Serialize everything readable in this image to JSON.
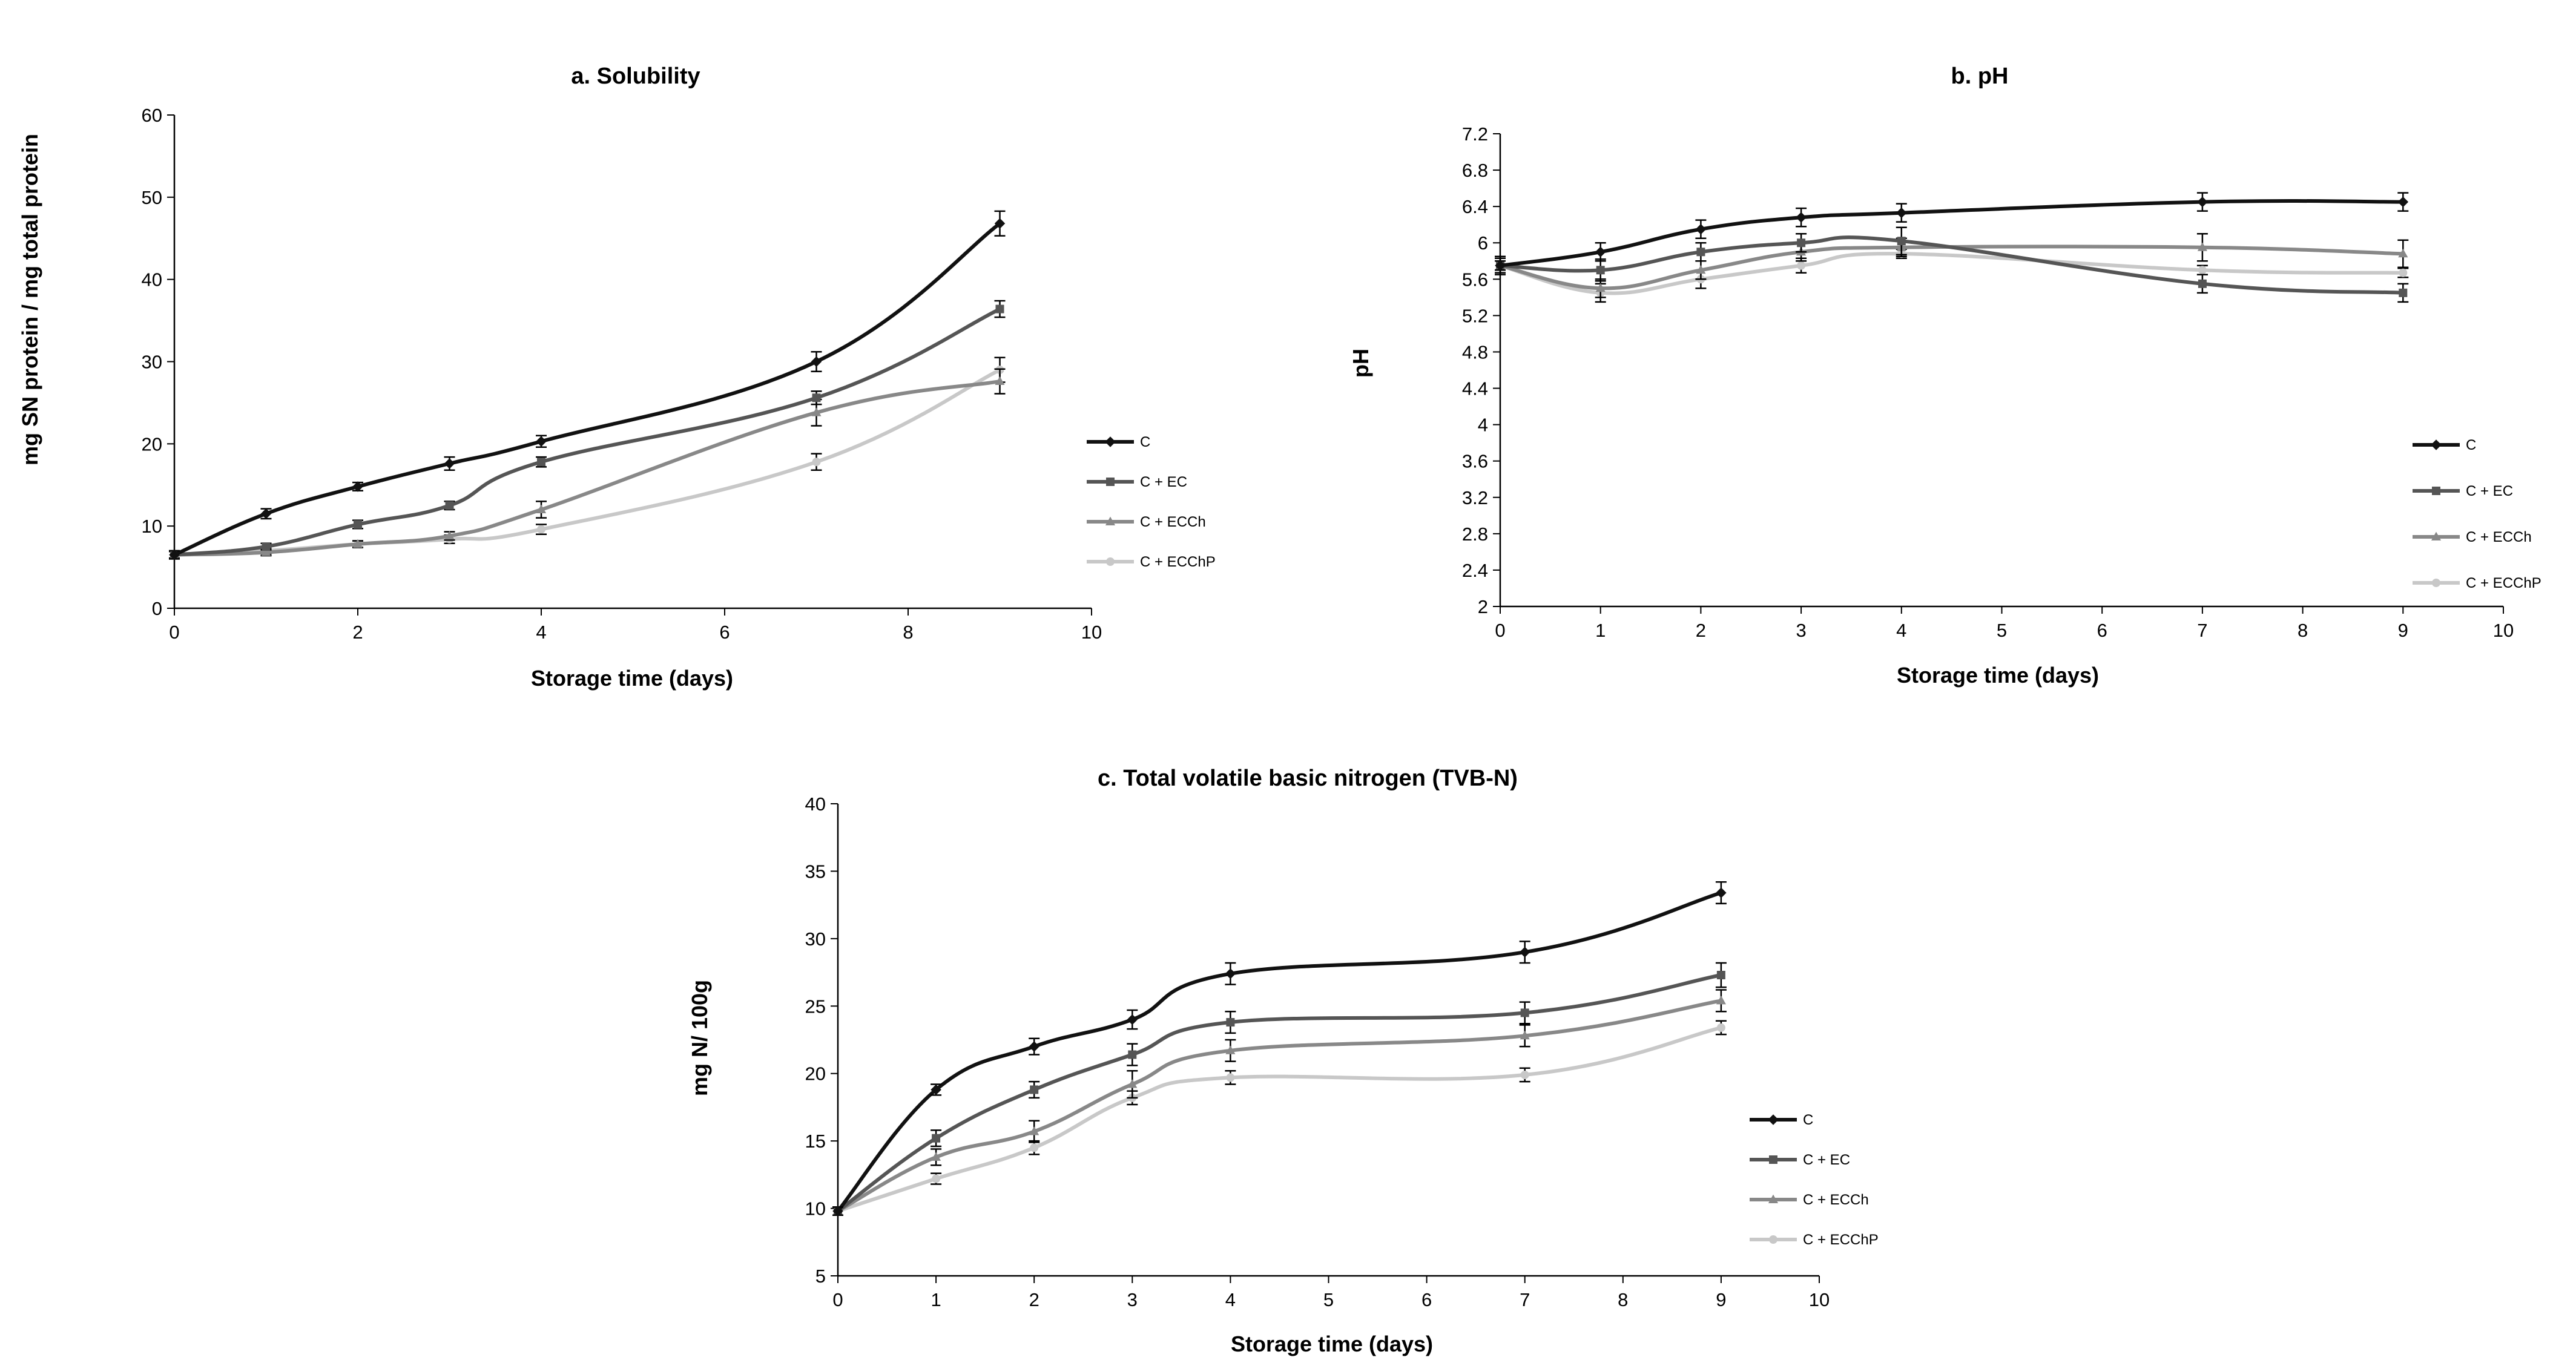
{
  "chart_data": [
    {
      "type": "line",
      "title": "a. Solubility",
      "xlabel": "Storage time (days)",
      "ylabel": "mg SN protein / mg total protein",
      "xlim": [
        0,
        10
      ],
      "ylim": [
        0,
        60
      ],
      "xticks": [
        "0",
        "2",
        "4",
        "6",
        "8",
        "10"
      ],
      "yticks": [
        "0",
        "10",
        "20",
        "30",
        "40",
        "50",
        "60"
      ],
      "x": [
        0,
        1,
        2,
        3,
        4,
        7,
        9
      ],
      "series": [
        {
          "name": "C",
          "color": "#111111",
          "marker": "diamond",
          "values": [
            6.5,
            11.5,
            14.8,
            17.6,
            20.3,
            30.0,
            46.8
          ],
          "errors": [
            0.5,
            0.6,
            0.5,
            0.8,
            0.7,
            1.2,
            1.5
          ]
        },
        {
          "name": "C + EC",
          "color": "#555555",
          "marker": "square",
          "values": [
            6.5,
            7.5,
            10.2,
            12.5,
            17.8,
            25.6,
            36.4
          ],
          "errors": [
            0.4,
            0.4,
            0.5,
            0.5,
            0.6,
            0.8,
            1.0
          ]
        },
        {
          "name": "C + ECCh",
          "color": "#888888",
          "marker": "triangle",
          "values": [
            6.5,
            6.8,
            7.8,
            8.8,
            12.0,
            23.8,
            27.6
          ],
          "errors": [
            0.4,
            0.4,
            0.4,
            0.5,
            1.0,
            1.6,
            1.5
          ]
        },
        {
          "name": "C + ECChP",
          "color": "#c8c8c8",
          "marker": "circle",
          "values": [
            6.5,
            7.0,
            7.8,
            8.4,
            9.6,
            17.8,
            29.0
          ],
          "errors": [
            0.4,
            0.4,
            0.4,
            0.5,
            0.6,
            1.0,
            1.5
          ]
        }
      ],
      "legend_position": "right"
    },
    {
      "type": "line",
      "title": "b. pH",
      "xlabel": "Storage time (days)",
      "ylabel": "pH",
      "xlim": [
        0,
        10
      ],
      "ylim": [
        2,
        7.2
      ],
      "xticks": [
        "0",
        "1",
        "2",
        "3",
        "4",
        "5",
        "6",
        "7",
        "8",
        "9",
        "10"
      ],
      "yticks": [
        "2",
        "2.4",
        "2.8",
        "3.2",
        "3.6",
        "4",
        "4.4",
        "4.8",
        "5.2",
        "5.6",
        "6",
        "6.4",
        "6.8",
        "7.2"
      ],
      "x": [
        0,
        1,
        2,
        3,
        4,
        7,
        9
      ],
      "series": [
        {
          "name": "C",
          "color": "#111111",
          "marker": "diamond",
          "values": [
            5.75,
            5.9,
            6.15,
            6.28,
            6.33,
            6.45,
            6.45
          ],
          "errors": [
            0.05,
            0.1,
            0.1,
            0.1,
            0.1,
            0.1,
            0.1
          ]
        },
        {
          "name": "C + EC",
          "color": "#555555",
          "marker": "square",
          "values": [
            5.75,
            5.7,
            5.9,
            6.0,
            6.02,
            5.55,
            5.45
          ],
          "errors": [
            0.1,
            0.12,
            0.1,
            0.1,
            0.15,
            0.1,
            0.1
          ]
        },
        {
          "name": "C + ECCh",
          "color": "#888888",
          "marker": "triangle",
          "values": [
            5.75,
            5.5,
            5.7,
            5.9,
            5.95,
            5.95,
            5.88
          ],
          "errors": [
            0.08,
            0.1,
            0.1,
            0.1,
            0.1,
            0.15,
            0.15
          ]
        },
        {
          "name": "C + ECChP",
          "color": "#c8c8c8",
          "marker": "circle",
          "values": [
            5.75,
            5.45,
            5.6,
            5.75,
            5.88,
            5.7,
            5.67
          ],
          "errors": [
            0.05,
            0.1,
            0.1,
            0.08,
            0.05,
            0.05,
            0.05
          ]
        }
      ],
      "legend_position": "right"
    },
    {
      "type": "line",
      "title": "c. Total volatile basic nitrogen (TVB-N)",
      "xlabel": "Storage time (days)",
      "ylabel": "mg N/ 100g",
      "xlim": [
        0,
        10
      ],
      "ylim": [
        5,
        40
      ],
      "xticks": [
        "0",
        "1",
        "2",
        "3",
        "4",
        "5",
        "6",
        "7",
        "8",
        "9",
        "10"
      ],
      "yticks": [
        "5",
        "10",
        "15",
        "20",
        "25",
        "30",
        "35",
        "40"
      ],
      "x": [
        0,
        1,
        2,
        3,
        4,
        7,
        9
      ],
      "series": [
        {
          "name": "C",
          "color": "#111111",
          "marker": "diamond",
          "values": [
            9.8,
            18.8,
            22.0,
            24.0,
            27.4,
            29.0,
            33.4
          ],
          "errors": [
            0.3,
            0.4,
            0.6,
            0.7,
            0.8,
            0.8,
            0.8
          ]
        },
        {
          "name": "C + EC",
          "color": "#555555",
          "marker": "square",
          "values": [
            9.8,
            15.2,
            18.8,
            21.4,
            23.8,
            24.5,
            27.3
          ],
          "errors": [
            0.3,
            0.6,
            0.6,
            0.8,
            0.8,
            0.8,
            0.9
          ]
        },
        {
          "name": "C + ECCh",
          "color": "#888888",
          "marker": "triangle",
          "values": [
            9.8,
            13.8,
            15.7,
            19.2,
            21.7,
            22.8,
            25.4
          ],
          "errors": [
            0.3,
            0.6,
            0.8,
            1.0,
            0.8,
            0.8,
            0.8
          ]
        },
        {
          "name": "C + ECChP",
          "color": "#c8c8c8",
          "marker": "circle",
          "values": [
            9.8,
            12.2,
            14.5,
            18.2,
            19.7,
            19.9,
            23.4
          ],
          "errors": [
            0.3,
            0.4,
            0.5,
            0.5,
            0.5,
            0.5,
            0.5
          ]
        }
      ],
      "legend_position": "right"
    }
  ]
}
